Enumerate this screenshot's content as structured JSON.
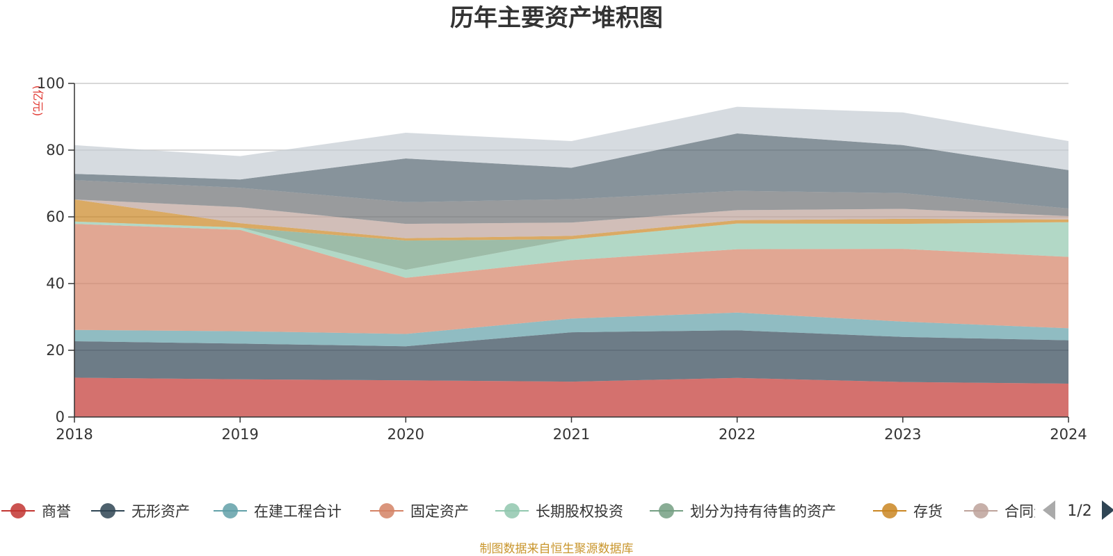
{
  "chart_data": {
    "type": "area",
    "stacked": true,
    "title": "历年主要资产堆积图",
    "unit": "(亿元)",
    "x": [
      "2018",
      "2019",
      "2020",
      "2021",
      "2022",
      "2023",
      "2024"
    ],
    "ylim": [
      0,
      100
    ],
    "yticks": [
      "0",
      "20",
      "40",
      "60",
      "80",
      "100"
    ],
    "grid": true,
    "legend_position": "bottom",
    "series": [
      {
        "name": "商誉",
        "color": "#c23531",
        "values": [
          11.8,
          11.3,
          11.0,
          10.6,
          11.7,
          10.5,
          10.0
        ]
      },
      {
        "name": "无形资产",
        "color": "#2f4554",
        "values": [
          10.9,
          10.7,
          10.2,
          14.8,
          14.3,
          13.5,
          13.0
        ]
      },
      {
        "name": "在建工程合计",
        "color": "#61a0a8",
        "values": [
          3.4,
          3.7,
          3.7,
          4.1,
          5.3,
          4.6,
          3.6
        ]
      },
      {
        "name": "固定资产",
        "color": "#d48265",
        "values": [
          31.8,
          30.4,
          16.8,
          17.5,
          19.0,
          21.8,
          21.4
        ]
      },
      {
        "name": "长期股权投资",
        "color": "#91c7ae",
        "values": [
          0.7,
          0.7,
          2.4,
          6.3,
          7.7,
          7.5,
          10.4
        ]
      },
      {
        "name": "划分为持有待售的资产",
        "color": "#749f83",
        "values": [
          0.0,
          0.0,
          8.8,
          0.0,
          0.0,
          0.0,
          0.0
        ]
      },
      {
        "name": "存货",
        "color": "#ca8622",
        "values": [
          6.6,
          1.3,
          0.7,
          1.0,
          1.0,
          1.5,
          0.8
        ]
      },
      {
        "name": "合同资产",
        "color": "#bda29a",
        "values": [
          0.0,
          4.8,
          4.3,
          4.0,
          3.0,
          3.0,
          1.0
        ]
      },
      {
        "name": "",
        "color": "#6e7074",
        "values": [
          5.8,
          5.8,
          6.5,
          7.0,
          5.8,
          4.7,
          2.3
        ]
      },
      {
        "name": "",
        "color": "#546570",
        "values": [
          1.9,
          2.5,
          13.1,
          9.4,
          17.2,
          14.4,
          11.5
        ]
      },
      {
        "name": "",
        "color": "#c4ccd3",
        "values": [
          8.6,
          7.0,
          7.7,
          8.0,
          8.0,
          9.8,
          8.7
        ]
      }
    ],
    "legend_page": "1/2",
    "source": "制图数据来自恒生聚源数据库"
  }
}
